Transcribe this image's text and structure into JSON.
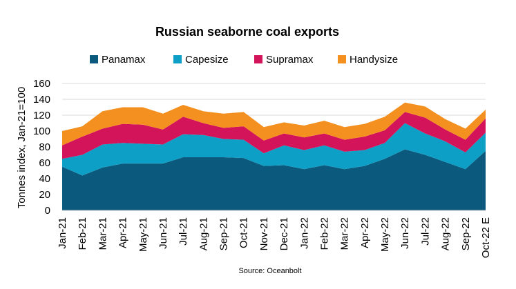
{
  "chart_data": {
    "type": "area",
    "stacked": true,
    "title": "Russian seaborne coal exports",
    "ylabel": "Tonnes index, Jan-21=100",
    "xlabel": "",
    "source": "Source: Oceanbolt",
    "ylim": [
      0,
      160
    ],
    "yticks": [
      0,
      20,
      40,
      60,
      80,
      100,
      120,
      140,
      160
    ],
    "grid": "horizontal",
    "legend_position": "top",
    "categories": [
      "Jan-21",
      "Feb-21",
      "Mar-21",
      "Apr-21",
      "May-21",
      "Jun-21",
      "Jul-21",
      "Aug-21",
      "Sep-21",
      "Oct-21",
      "Nov-21",
      "Dec-21",
      "Jan-22",
      "Feb-22",
      "Mar-22",
      "Apr-22",
      "May-22",
      "Jun-22",
      "Jul-22",
      "Aug-22",
      "Sep-22",
      "Oct-22 E"
    ],
    "series": [
      {
        "name": "Panamax",
        "color": "#0b5a7d",
        "values": [
          55,
          44,
          54,
          59,
          59,
          59,
          67,
          67,
          67,
          66,
          56,
          57,
          52,
          57,
          52,
          56,
          65,
          77,
          70,
          61,
          52,
          75
        ]
      },
      {
        "name": "Capesize",
        "color": "#0e9fc6",
        "values": [
          10,
          26,
          29,
          26,
          25,
          24,
          29,
          28,
          23,
          23,
          16,
          25,
          24,
          25,
          22,
          20,
          20,
          33,
          27,
          26,
          21,
          23
        ]
      },
      {
        "name": "Supramax",
        "color": "#d4145a",
        "values": [
          17,
          23,
          20,
          24,
          24,
          19,
          22,
          15,
          14,
          17,
          16,
          15,
          16,
          15,
          15,
          17,
          16,
          14,
          20,
          15,
          16,
          18
        ]
      },
      {
        "name": "Handysize",
        "color": "#f4901f",
        "values": [
          18,
          13,
          22,
          21,
          22,
          20,
          15,
          15,
          18,
          18,
          17,
          14,
          15,
          16,
          16,
          16,
          17,
          12,
          14,
          13,
          14,
          11
        ]
      }
    ]
  }
}
